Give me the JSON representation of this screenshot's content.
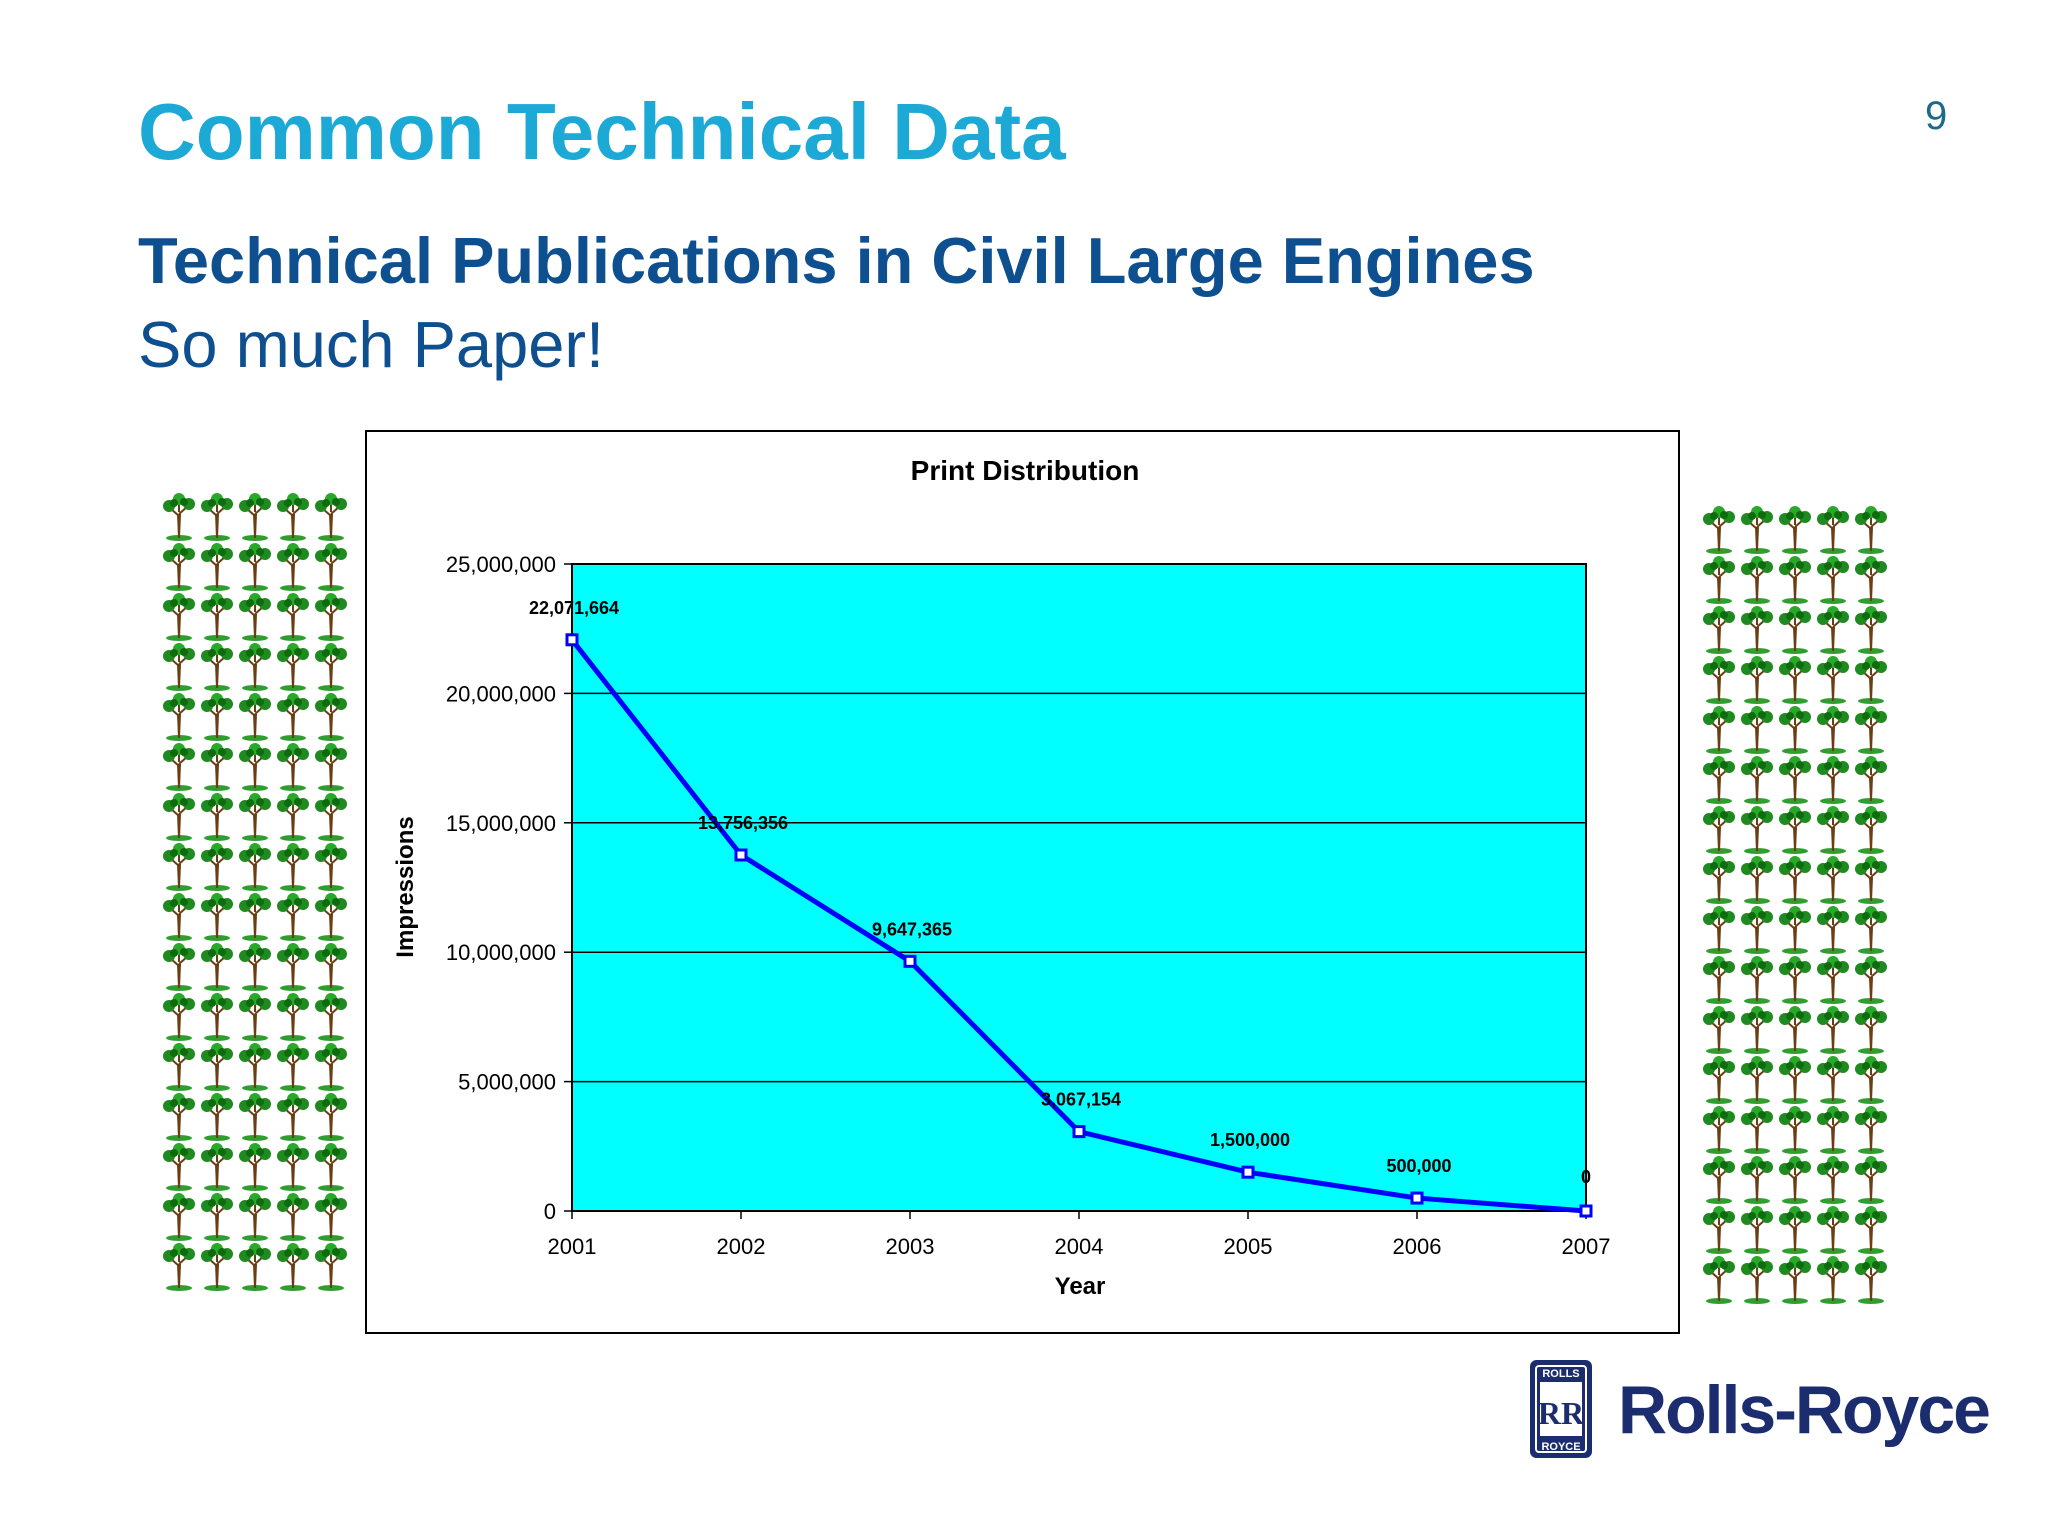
{
  "slide": {
    "title": "Common Technical Data",
    "page_number": "9",
    "subtitle": "Technical Publications in Civil Large Engines",
    "tagline": "So much Paper!"
  },
  "decorations": {
    "icon": "tree-icon",
    "left_rows": 16,
    "right_rows": 16,
    "columns": 5
  },
  "logo": {
    "brand": "Rolls-Royce",
    "badge_top": "ROLLS",
    "badge_bottom": "ROYCE",
    "badge_monogram": "RR"
  },
  "colors": {
    "title": "#1ca9d6",
    "subtitle": "#0e4f8f",
    "plot_background": "#00ffff",
    "series_line": "#0000ff",
    "brand": "#1b2d6e"
  },
  "chart_data": {
    "type": "line",
    "title": "Print Distribution",
    "xlabel": "Year",
    "ylabel": "Impressions",
    "categories": [
      "2001",
      "2002",
      "2003",
      "2004",
      "2005",
      "2006",
      "2007"
    ],
    "values": [
      22071664,
      13756356,
      9647365,
      3067154,
      1500000,
      500000,
      0
    ],
    "data_labels": [
      "22,071,664",
      "13,756,356",
      "9,647,365",
      "3,067,154",
      "1,500,000",
      "500,000",
      "0"
    ],
    "ylim": [
      0,
      25000000
    ],
    "yticks": [
      0,
      5000000,
      10000000,
      15000000,
      20000000,
      25000000
    ],
    "ytick_labels": [
      "0",
      "5,000,000",
      "10,000,000",
      "15,000,000",
      "20,000,000",
      "25,000,000"
    ],
    "grid": true,
    "legend": "none"
  }
}
